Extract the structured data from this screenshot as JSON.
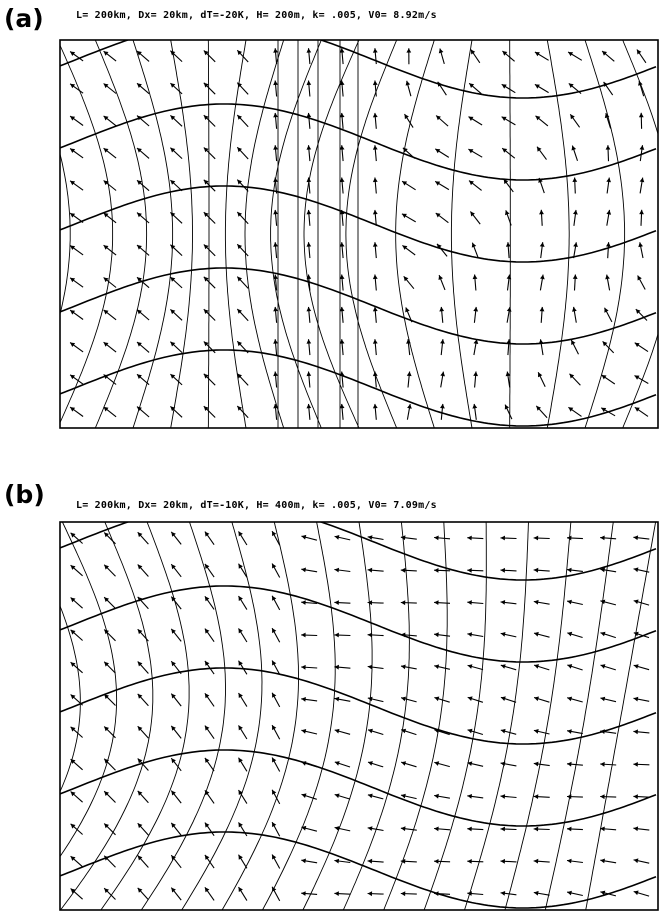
{
  "panels": [
    {
      "letter": "(a)",
      "params": "L= 200km, Dx= 20km, dT=-20K, H= 200m, k= .005, V0= 8.92m/s"
    },
    {
      "letter": "(b)",
      "params": "L= 200km, Dx= 20km, dT=-10K, H= 400m, k= .005, V0= 7.09m/s"
    }
  ]
}
